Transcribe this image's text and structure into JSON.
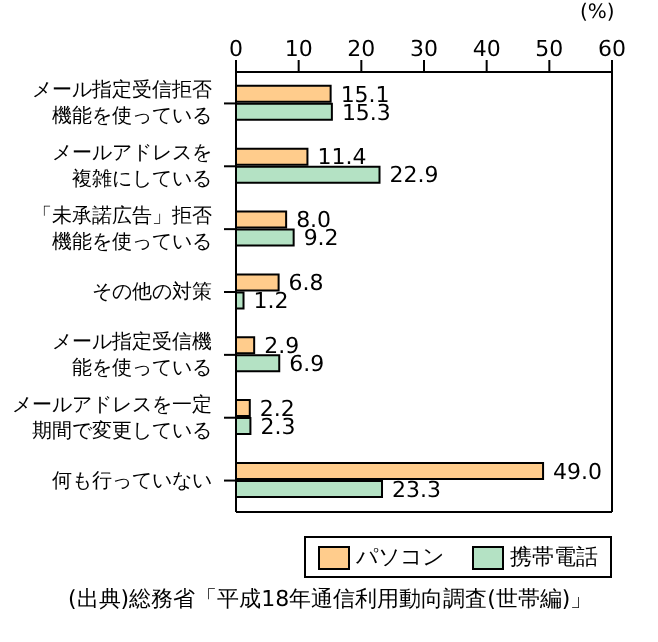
{
  "chart_data": {
    "type": "bar",
    "orientation": "horizontal",
    "xlabel": "(%)",
    "categories": [
      "メール指定受信拒否機能を使っている",
      "メールアドレスを複雑にしている",
      "「未承諾広告」拒否機能を使っている",
      "その他の対策",
      "メール指定受信機能を使っている",
      "メールアドレスを一定期間で変更している",
      "何も行っていない"
    ],
    "series": [
      {
        "name": "パソコン",
        "color": "#ffcc8c",
        "values": [
          15.1,
          11.4,
          8.0,
          6.8,
          2.9,
          2.2,
          49.0
        ],
        "value_labels": [
          "15.1",
          "11.4",
          "8.0",
          "6.8",
          "2.9",
          "2.2",
          "49.0"
        ]
      },
      {
        "name": "携帯電話",
        "color": "#b4e2c4",
        "values": [
          15.3,
          22.9,
          9.2,
          1.2,
          6.9,
          2.3,
          23.3
        ],
        "value_labels": [
          "15.3",
          "22.9",
          "9.2",
          "1.2",
          "6.9",
          "2.3",
          "23.3"
        ]
      }
    ],
    "xlim": [
      0,
      60
    ],
    "xticks": [
      0,
      10,
      20,
      30,
      40,
      50,
      60
    ],
    "legend": "bottom",
    "annotations": [
      "(出典)総務省「平成18年通信利用動向調査(世帯編)」"
    ]
  }
}
